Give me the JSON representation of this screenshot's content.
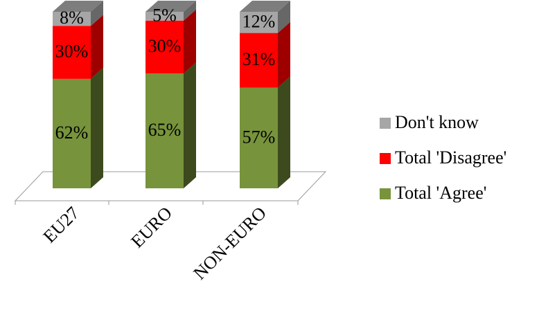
{
  "chart_data": {
    "type": "bar",
    "stacked": true,
    "categories": [
      "EU27",
      "EURO",
      "NON-EURO"
    ],
    "series": [
      {
        "name": "Total 'Agree'",
        "color": "#77933c",
        "values": [
          62,
          65,
          57
        ],
        "value_labels": [
          "62%",
          "65%",
          "57%"
        ]
      },
      {
        "name": "Total 'Disagree'",
        "color": "#ff0000",
        "values": [
          30,
          30,
          31
        ],
        "value_labels": [
          "30%",
          "30%",
          "31%"
        ]
      },
      {
        "name": "Don't know",
        "color": "#a6a6a6",
        "values": [
          8,
          5,
          12
        ],
        "value_labels": [
          "8%",
          "5%",
          "12%"
        ]
      }
    ],
    "legend": "right"
  }
}
